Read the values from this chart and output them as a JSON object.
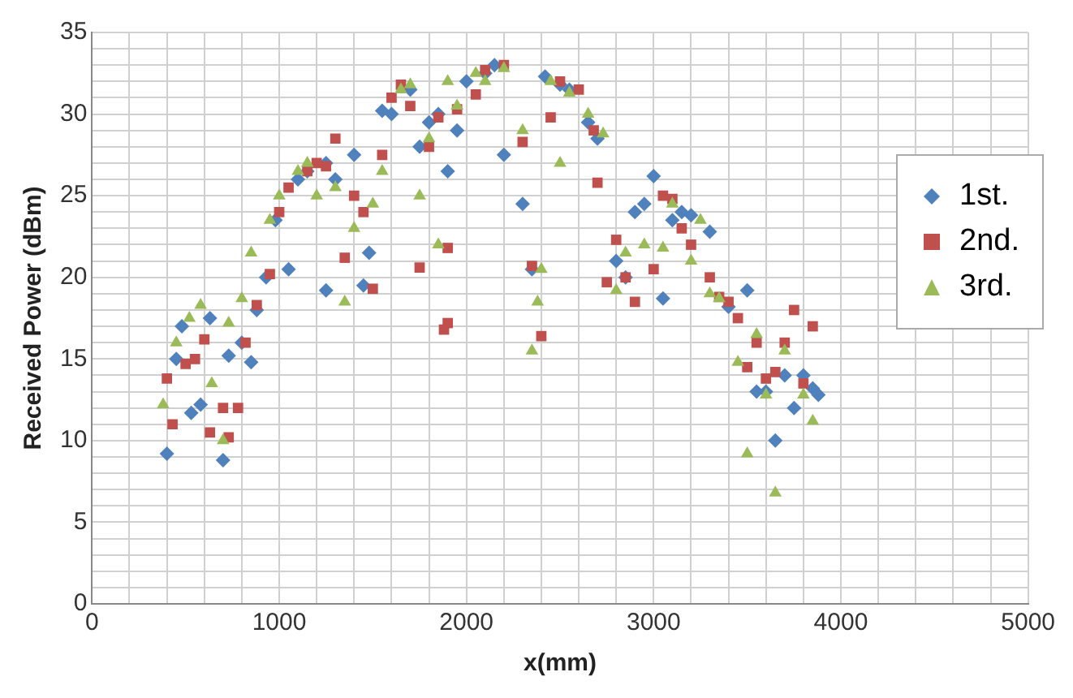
{
  "chart_data": {
    "type": "scatter",
    "xlabel": "x(mm)",
    "ylabel": "Received Power (dBm)",
    "xlim": [
      0,
      5000
    ],
    "ylim": [
      0,
      35
    ],
    "xticks": [
      0,
      {
        "value": 200,
        "label": null
      },
      {
        "value": 400,
        "label": null
      },
      {
        "value": 600,
        "label": null
      },
      {
        "value": 800,
        "label": null
      },
      1000,
      {
        "value": 1200,
        "label": null
      },
      {
        "value": 1400,
        "label": null
      },
      {
        "value": 1600,
        "label": null
      },
      {
        "value": 1800,
        "label": null
      },
      2000,
      {
        "value": 2200,
        "label": null
      },
      {
        "value": 2400,
        "label": null
      },
      {
        "value": 2600,
        "label": null
      },
      {
        "value": 2800,
        "label": null
      },
      3000,
      {
        "value": 3200,
        "label": null
      },
      {
        "value": 3400,
        "label": null
      },
      {
        "value": 3600,
        "label": null
      },
      {
        "value": 3800,
        "label": null
      },
      4000,
      {
        "value": 4200,
        "label": null
      },
      {
        "value": 4400,
        "label": null
      },
      {
        "value": 4600,
        "label": null
      },
      {
        "value": 4800,
        "label": null
      },
      5000
    ],
    "yticks": [
      0,
      {
        "value": 1,
        "label": null
      },
      {
        "value": 2,
        "label": null
      },
      {
        "value": 3,
        "label": null
      },
      {
        "value": 4,
        "label": null
      },
      5,
      {
        "value": 6,
        "label": null
      },
      {
        "value": 7,
        "label": null
      },
      {
        "value": 8,
        "label": null
      },
      {
        "value": 9,
        "label": null
      },
      10,
      {
        "value": 11,
        "label": null
      },
      {
        "value": 12,
        "label": null
      },
      {
        "value": 13,
        "label": null
      },
      {
        "value": 14,
        "label": null
      },
      15,
      {
        "value": 16,
        "label": null
      },
      {
        "value": 17,
        "label": null
      },
      {
        "value": 18,
        "label": null
      },
      {
        "value": 19,
        "label": null
      },
      20,
      {
        "value": 21,
        "label": null
      },
      {
        "value": 22,
        "label": null
      },
      {
        "value": 23,
        "label": null
      },
      {
        "value": 24,
        "label": null
      },
      25,
      {
        "value": 26,
        "label": null
      },
      {
        "value": 27,
        "label": null
      },
      {
        "value": 28,
        "label": null
      },
      {
        "value": 29,
        "label": null
      },
      30,
      {
        "value": 31,
        "label": null
      },
      {
        "value": 32,
        "label": null
      },
      {
        "value": 33,
        "label": null
      },
      {
        "value": 34,
        "label": null
      },
      35
    ],
    "grid": true,
    "legend": "right",
    "series": [
      {
        "name": "1st.",
        "color": "#4f81bd",
        "marker": "diamond",
        "x": [
          400,
          450,
          480,
          530,
          580,
          630,
          700,
          730,
          800,
          850,
          880,
          930,
          980,
          1050,
          1100,
          1150,
          1250,
          1250,
          1300,
          1400,
          1450,
          1480,
          1550,
          1600,
          1700,
          1750,
          1800,
          1850,
          1900,
          1950,
          2000,
          2100,
          2150,
          2200,
          2300,
          2350,
          2420,
          2500,
          2550,
          2650,
          2700,
          2800,
          2850,
          2900,
          2950,
          3000,
          3050,
          3100,
          3150,
          3200,
          3300,
          3400,
          3500,
          3550,
          3600,
          3650,
          3700,
          3750,
          3800,
          3850,
          3880
        ],
        "values": [
          9.2,
          15,
          17,
          11.7,
          12.2,
          17.5,
          8.8,
          15.2,
          16,
          14.8,
          18,
          20,
          23.5,
          20.5,
          26,
          26.5,
          19.2,
          27,
          26,
          27.5,
          19.5,
          21.5,
          30.2,
          30,
          31.5,
          28,
          29.5,
          30,
          26.5,
          29,
          32,
          32.5,
          33,
          27.5,
          24.5,
          20.5,
          32.3,
          31.8,
          31.5,
          29.5,
          28.5,
          21,
          20,
          24,
          24.5,
          26.2,
          18.7,
          23.5,
          24,
          23.8,
          22.8,
          18.2,
          19.2,
          13,
          13,
          10,
          14,
          12,
          14,
          13.2,
          12.8
        ]
      },
      {
        "name": "2nd.",
        "color": "#c0504d",
        "marker": "square",
        "x": [
          400,
          430,
          500,
          550,
          600,
          630,
          700,
          730,
          780,
          820,
          880,
          950,
          1000,
          1050,
          1150,
          1200,
          1250,
          1300,
          1350,
          1400,
          1450,
          1500,
          1550,
          1600,
          1650,
          1700,
          1750,
          1800,
          1850,
          1900,
          1880,
          1900,
          1950,
          2050,
          2100,
          2200,
          2300,
          2350,
          2400,
          2450,
          2500,
          2600,
          2680,
          2700,
          2750,
          2800,
          2850,
          2900,
          3000,
          3050,
          3100,
          3150,
          3200,
          3300,
          3350,
          3400,
          3450,
          3500,
          3550,
          3600,
          3650,
          3700,
          3750,
          3800,
          3850
        ],
        "values": [
          13.8,
          11,
          14.7,
          15,
          16.2,
          10.5,
          12,
          10.2,
          12,
          16,
          18.3,
          20.2,
          24,
          25.5,
          26.5,
          27,
          26.8,
          28.5,
          21.2,
          25,
          24,
          19.3,
          27.5,
          31,
          31.8,
          30.5,
          20.6,
          28,
          29.8,
          21.8,
          16.8,
          17.2,
          30.3,
          31.2,
          32.7,
          33,
          28.3,
          20.7,
          16.4,
          29.8,
          32,
          31.5,
          29,
          25.8,
          19.7,
          22.3,
          20,
          18.5,
          20.5,
          25,
          24.8,
          23,
          22,
          20,
          18.8,
          18.5,
          17.5,
          14.5,
          16,
          13.8,
          14.2,
          16,
          18,
          13.5,
          17
        ]
      },
      {
        "name": "3rd.",
        "color": "#9bbb59",
        "marker": "triangle",
        "x": [
          380,
          450,
          520,
          580,
          640,
          700,
          730,
          800,
          850,
          950,
          1000,
          1100,
          1150,
          1200,
          1300,
          1350,
          1400,
          1500,
          1550,
          1650,
          1700,
          1750,
          1800,
          1850,
          1900,
          1950,
          2050,
          2100,
          2200,
          2300,
          2350,
          2380,
          2400,
          2450,
          2500,
          2550,
          2650,
          2730,
          2800,
          2850,
          2950,
          3050,
          3100,
          3200,
          3250,
          3300,
          3350,
          3450,
          3500,
          3550,
          3600,
          3650,
          3700,
          3800,
          3850
        ],
        "values": [
          12.2,
          16,
          17.5,
          18.3,
          13.5,
          10,
          17.2,
          18.7,
          21.5,
          23.5,
          25,
          26.5,
          27,
          25,
          25.5,
          18.5,
          23,
          24.5,
          26.5,
          31.5,
          31.8,
          25,
          28.5,
          22,
          32,
          30.5,
          32.5,
          32,
          32.8,
          29,
          15.5,
          18.5,
          20.5,
          32,
          27,
          31.3,
          30,
          28.8,
          19.2,
          21.5,
          22,
          21.8,
          24.5,
          21,
          23.5,
          19,
          18.7,
          14.8,
          9.2,
          16.5,
          12.8,
          6.8,
          15.5,
          12.8,
          11.2
        ]
      }
    ]
  }
}
